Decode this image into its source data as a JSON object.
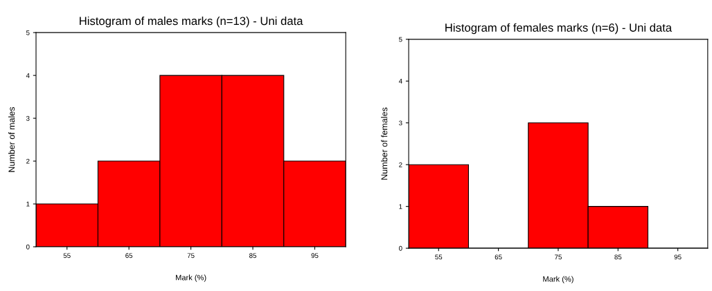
{
  "chart_data": [
    {
      "type": "histogram",
      "title": "Histogram of males marks (n=13) - Uni data",
      "xlabel": "Mark (%)",
      "ylabel": "Number of males",
      "bins": [
        50,
        60,
        70,
        80,
        90,
        100
      ],
      "values": [
        1,
        2,
        4,
        4,
        2
      ],
      "color": "#ff0000",
      "xlim": [
        50,
        100
      ],
      "xticks": [
        55,
        65,
        75,
        85,
        95
      ],
      "ylim": [
        0,
        5
      ],
      "yticks": [
        0,
        1,
        2,
        3,
        4,
        5
      ],
      "grid": false
    },
    {
      "type": "histogram",
      "title": "Histogram of females marks (n=6) - Uni data",
      "xlabel": "Mark (%)",
      "ylabel": "Number of females",
      "bins": [
        50,
        60,
        70,
        80,
        90,
        100
      ],
      "values": [
        2,
        0,
        3,
        1,
        0
      ],
      "color": "#ff0000",
      "xlim": [
        50,
        100
      ],
      "xticks": [
        55,
        65,
        75,
        85,
        95
      ],
      "ylim": [
        0,
        5
      ],
      "yticks": [
        0,
        1,
        2,
        3,
        4,
        5
      ],
      "grid": false
    }
  ]
}
